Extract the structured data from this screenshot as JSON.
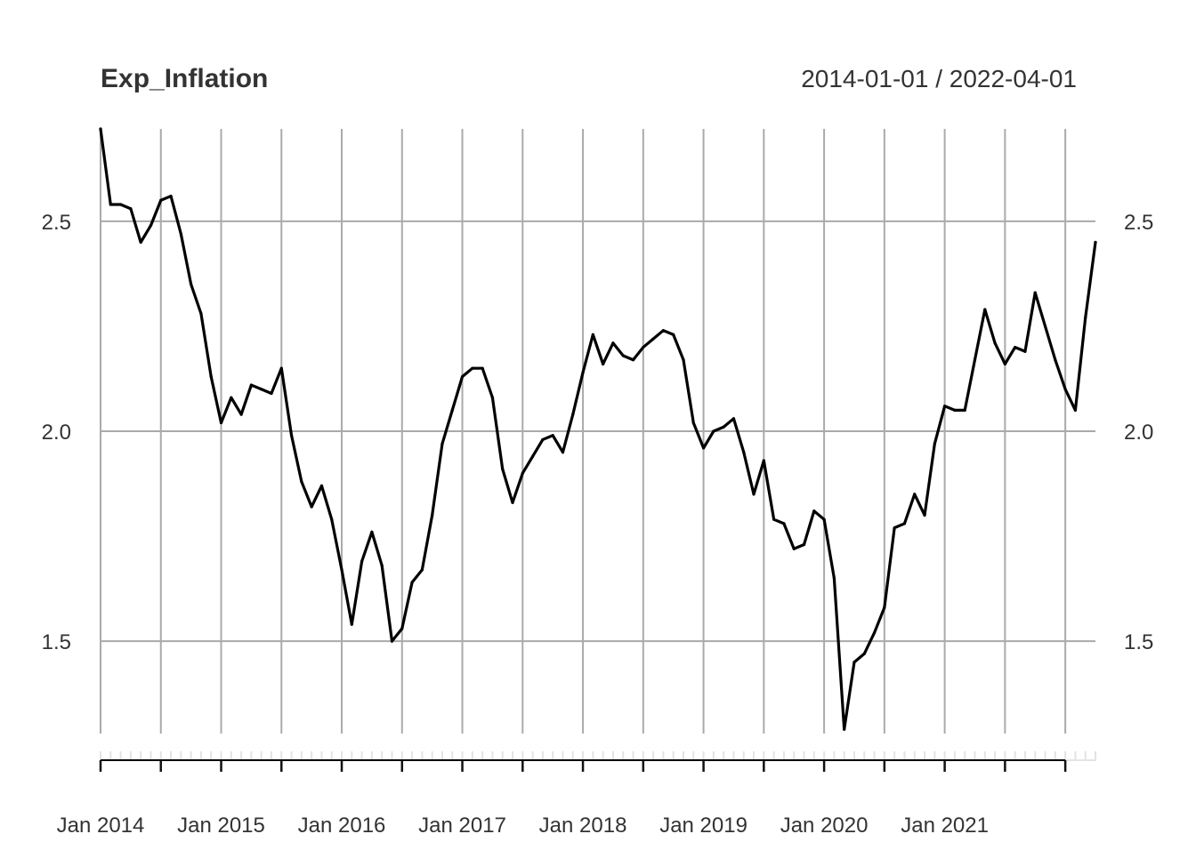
{
  "chart_data": {
    "type": "line",
    "title": "Exp_Inflation",
    "date_range_label": "2014-01-01 / 2022-04-01",
    "frequency": "monthly",
    "start": "2014-01",
    "end": "2022-04",
    "ylim": [
      1.28,
      2.72
    ],
    "y_ticks": [
      1.5,
      2.0,
      2.5
    ],
    "y_tick_labels": [
      "1.5",
      "2.0",
      "2.5"
    ],
    "x_tick_labels": [
      "Jan 2014",
      "Jan 2015",
      "Jan 2016",
      "Jan 2017",
      "Jan 2018",
      "Jan 2019",
      "Jan 2020",
      "Jan 2021"
    ],
    "grid": true,
    "series": [
      {
        "x": [
          "2014-01",
          "2014-02",
          "2014-03",
          "2014-04",
          "2014-05",
          "2014-06",
          "2014-07",
          "2014-08",
          "2014-09",
          "2014-10",
          "2014-11",
          "2014-12",
          "2015-01",
          "2015-02",
          "2015-03",
          "2015-04",
          "2015-05",
          "2015-06",
          "2015-07",
          "2015-08",
          "2015-09",
          "2015-10",
          "2015-11",
          "2015-12",
          "2016-01",
          "2016-02",
          "2016-03",
          "2016-04",
          "2016-05",
          "2016-06",
          "2016-07",
          "2016-08",
          "2016-09",
          "2016-10",
          "2016-11",
          "2016-12",
          "2017-01",
          "2017-02",
          "2017-03",
          "2017-04",
          "2017-05",
          "2017-06",
          "2017-07",
          "2017-08",
          "2017-09",
          "2017-10",
          "2017-11",
          "2017-12",
          "2018-01",
          "2018-02",
          "2018-03",
          "2018-04",
          "2018-05",
          "2018-06",
          "2018-07",
          "2018-08",
          "2018-09",
          "2018-10",
          "2018-11",
          "2018-12",
          "2019-01",
          "2019-02",
          "2019-03",
          "2019-04",
          "2019-05",
          "2019-06",
          "2019-07",
          "2019-08",
          "2019-09",
          "2019-10",
          "2019-11",
          "2019-12",
          "2020-01",
          "2020-02",
          "2020-03",
          "2020-04",
          "2020-05",
          "2020-06",
          "2020-07",
          "2020-08",
          "2020-09",
          "2020-10",
          "2020-11",
          "2020-12",
          "2021-01",
          "2021-02",
          "2021-03",
          "2021-04",
          "2021-05",
          "2021-06",
          "2021-07",
          "2021-08",
          "2021-09",
          "2021-10",
          "2021-11",
          "2021-12",
          "2022-01",
          "2022-02",
          "2022-03",
          "2022-04"
        ],
        "values": [
          2.72,
          2.54,
          2.54,
          2.53,
          2.45,
          2.49,
          2.55,
          2.56,
          2.47,
          2.35,
          2.28,
          2.13,
          2.02,
          2.08,
          2.04,
          2.11,
          2.1,
          2.09,
          2.15,
          1.99,
          1.88,
          1.82,
          1.87,
          1.79,
          1.67,
          1.54,
          1.69,
          1.76,
          1.68,
          1.5,
          1.53,
          1.64,
          1.67,
          1.8,
          1.97,
          2.05,
          2.13,
          2.15,
          2.15,
          2.08,
          1.91,
          1.83,
          1.9,
          1.94,
          1.98,
          1.99,
          1.95,
          2.04,
          2.14,
          2.23,
          2.16,
          2.21,
          2.18,
          2.17,
          2.2,
          2.22,
          2.24,
          2.23,
          2.17,
          2.02,
          1.96,
          2.0,
          2.01,
          2.03,
          1.95,
          1.85,
          1.93,
          1.79,
          1.78,
          1.72,
          1.73,
          1.81,
          1.79,
          1.65,
          1.29,
          1.45,
          1.47,
          1.52,
          1.58,
          1.77,
          1.78,
          1.85,
          1.8,
          1.97,
          2.06,
          2.05,
          2.05,
          2.17,
          2.29,
          2.21,
          2.16,
          2.2,
          2.19,
          2.33,
          2.25,
          2.17,
          2.1,
          2.05,
          2.27,
          2.45
        ]
      }
    ]
  },
  "colors": {
    "line": "#000000",
    "grid": "#aaaaaa",
    "text": "#333333"
  }
}
